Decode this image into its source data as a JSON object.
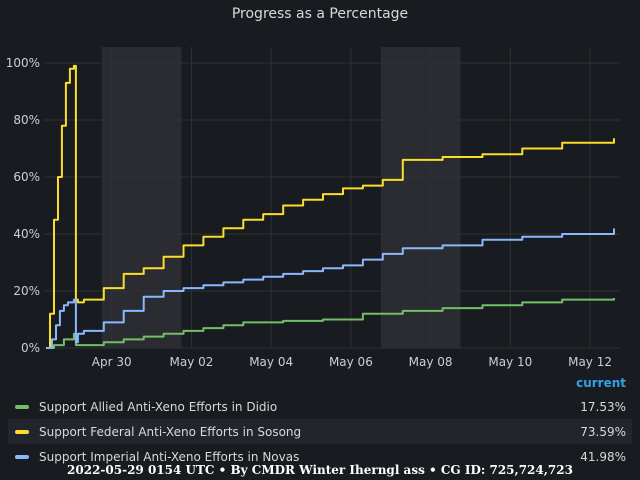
{
  "title": "Progress as a Percentage",
  "footer": "2022-05-29 0154 UTC • By CMDR Winter Iherngl ass • CG ID: 725,724,723",
  "legend": {
    "header": "current",
    "items": [
      {
        "name": "Support Allied Anti-Xeno Efforts in Didio",
        "value": "17.53%",
        "color": "#73bf69"
      },
      {
        "name": "Support Federal Anti-Xeno Efforts in Sosong",
        "value": "73.59%",
        "color": "#fade2a"
      },
      {
        "name": "Support Imperial Anti-Xeno Efforts in Novas",
        "value": "41.98%",
        "color": "#8ab8ff"
      }
    ]
  },
  "chart_data": {
    "type": "line",
    "title": "Progress as a Percentage",
    "xlabel": "",
    "ylabel": "",
    "x_ticks": [
      "Apr 30",
      "May 02",
      "May 04",
      "May 06",
      "May 08",
      "May 10",
      "May 12"
    ],
    "y_ticks": [
      "0%",
      "20%",
      "40%",
      "60%",
      "80%",
      "100%"
    ],
    "ylim": [
      0,
      100
    ],
    "grid": true,
    "x_unit": "days from Apr 28",
    "series": [
      {
        "name": "Support Allied Anti-Xeno Efforts in Didio",
        "color": "#73bf69",
        "x": [
          0.05,
          0.25,
          0.5,
          0.75,
          0.8,
          1.5,
          2,
          2.5,
          3,
          3.5,
          4,
          4.5,
          5,
          6,
          7,
          8,
          9,
          10,
          11,
          12,
          13,
          14.3
        ],
        "y": [
          0,
          1,
          3,
          5,
          1,
          2,
          3,
          4,
          5,
          6,
          7,
          8,
          9,
          9.5,
          10,
          12,
          13,
          14,
          15,
          16,
          17,
          17.53
        ]
      },
      {
        "name": "Support Federal Anti-Xeno Efforts in Sosong",
        "color": "#fade2a",
        "x": [
          0.05,
          0.15,
          0.25,
          0.35,
          0.45,
          0.55,
          0.65,
          0.75,
          0.8,
          0.85,
          1,
          1.5,
          2,
          2.5,
          3,
          3.5,
          4,
          4.5,
          5,
          5.5,
          6,
          6.5,
          7,
          7.5,
          8,
          8.5,
          9,
          10,
          11,
          12,
          13,
          14.3
        ],
        "y": [
          0,
          12,
          45,
          60,
          78,
          93,
          98,
          99,
          17,
          16,
          17,
          21,
          26,
          28,
          32,
          36,
          39,
          42,
          45,
          47,
          50,
          52,
          54,
          56,
          57,
          59,
          66,
          67,
          68,
          70,
          72,
          73.59
        ]
      },
      {
        "name": "Support Imperial Anti-Xeno Efforts in Novas",
        "color": "#8ab8ff",
        "x": [
          0.05,
          0.2,
          0.3,
          0.4,
          0.5,
          0.6,
          0.75,
          0.8,
          0.85,
          1,
          1.5,
          2,
          2.5,
          3,
          3.5,
          4,
          4.5,
          5,
          5.5,
          6,
          6.5,
          7,
          7.5,
          8,
          8.5,
          9,
          10,
          11,
          12,
          13,
          14.3
        ],
        "y": [
          0,
          3,
          8,
          13,
          15,
          16,
          17,
          2,
          5,
          6,
          9,
          13,
          18,
          20,
          21,
          22,
          23,
          24,
          25,
          26,
          27,
          28,
          29,
          31,
          33,
          35,
          36,
          38,
          39,
          40,
          41.98
        ]
      }
    ]
  }
}
